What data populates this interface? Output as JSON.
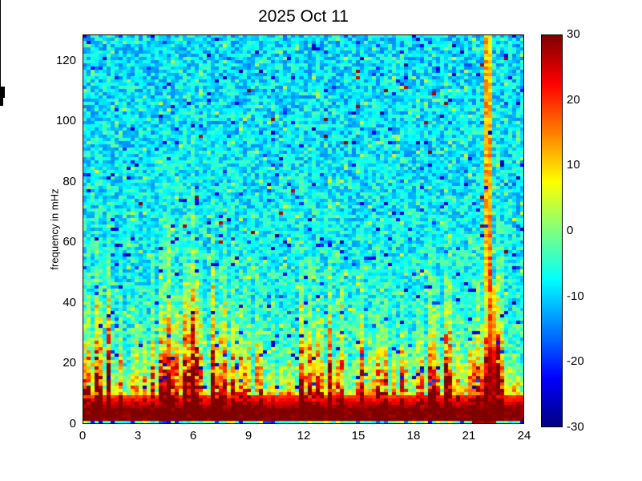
{
  "figure": {
    "background": "#ffffff",
    "axis_color": "#000000",
    "text_color": "#000000"
  },
  "chart_data": {
    "type": "heatmap",
    "title": "2025 Oct 11",
    "xlabel": "",
    "ylabel": "frequency in mHz",
    "xlim": [
      0,
      24
    ],
    "ylim": [
      0,
      128.6
    ],
    "grid": false,
    "colormap": "jet",
    "value_range": [
      -30,
      30
    ],
    "x_tick_values": [
      0,
      3,
      6,
      9,
      12,
      15,
      18,
      21,
      24
    ],
    "x_tick_labels": [
      "0",
      "3",
      "6",
      "9",
      "12",
      "15",
      "18",
      "21",
      "24"
    ],
    "y_tick_values": [
      0,
      20,
      40,
      60,
      80,
      100,
      120
    ],
    "y_tick_labels": [
      "0",
      "20",
      "40",
      "60",
      "80",
      "100",
      "120"
    ],
    "colorbar": {
      "position": "right",
      "min": -30,
      "max": 30,
      "tick_values": [
        30,
        20,
        10,
        0,
        -10,
        -20,
        -30
      ],
      "tick_labels": [
        "30",
        "20",
        "10",
        "0",
        "-10",
        "-20",
        "-30"
      ]
    },
    "features": [
      "speckled cyan-green noise background (about -7 dB) over full band",
      "continuous saturated dark-red band below about 9 mHz for all 24 h",
      "thin cyan/blue row at the very bottom (lowest frequency bin)",
      "vertical red/orange streaks rising to 40-48 mHz, strongest near 5-8 h",
      "moderate activity bumps near 13 h and 16 h reaching about 25 mHz",
      "broadband event near 22 h: narrow yellow-orange plume up to top of band, widening into a dark-red triangle below about 27 mHz spanning roughly 21-23.5 h",
      "sparse dark-blue speckles everywhere and rare dark-red dots at high frequency"
    ],
    "synthesis": {
      "seed": 20251011,
      "n_time_bins": 110,
      "n_freq_bins": 121,
      "background_db": -7,
      "background_noise_db": 6,
      "background_cyan_gradient_db": 2.5,
      "warm_cell_chance": 0.08,
      "low_band": {
        "amp_db": 75,
        "scale_base_mhz": 4.5,
        "scale_gain_mhz": 13,
        "col_min": 0.55,
        "col_var": 0.9,
        "streak_chance": 0.12,
        "streak_boost": 0.45
      },
      "solid_band": {
        "top_mhz": 9.5,
        "peak_db": 29.5,
        "falloff_per_mhz": 2.4
      },
      "activity_base": 0.55,
      "activity_bumps": [
        {
          "hour": 0.6,
          "amp": 0.2,
          "width_h": 0.8
        },
        {
          "hour": 5.5,
          "amp": 0.55,
          "width_h": 1.3
        },
        {
          "hour": 7.6,
          "amp": 0.3,
          "width_h": 0.6
        },
        {
          "hour": 12.9,
          "amp": 0.28,
          "width_h": 1.0
        },
        {
          "hour": 15.9,
          "amp": 0.28,
          "width_h": 0.9
        },
        {
          "hour": 18.6,
          "amp": 0.18,
          "width_h": 1.2
        },
        {
          "hour": 22.2,
          "amp": 0.5,
          "width_h": 0.7
        },
        {
          "hour": 23.3,
          "amp": 0.25,
          "width_h": 0.5
        }
      ],
      "event": {
        "center_hour_low": 22.25,
        "center_tilt_h": 0.3,
        "top_halfwidth_h": 0.22,
        "base_halfwidth_h": 1.35,
        "widen_below_mhz": 27,
        "core_db": 30,
        "plume_db_at_0": 26,
        "plume_db_slope": 0.07
      },
      "speckle": {
        "blue_chance": 0.028,
        "blue_db": -17,
        "blue_extra_db": 11,
        "min_freq_mhz": 12,
        "red_chance": 0.0035,
        "red_db": 25,
        "red_min_freq_mhz": 55
      },
      "bottom_row": {
        "max_freq_mhz": 1.1,
        "base_db": -9,
        "noise_db": 9,
        "blue_chance": 0.18,
        "warm_chance": 0.12,
        "event_center_hour": 21.8,
        "event_red_halfwidth_h": 0.6
      }
    }
  }
}
